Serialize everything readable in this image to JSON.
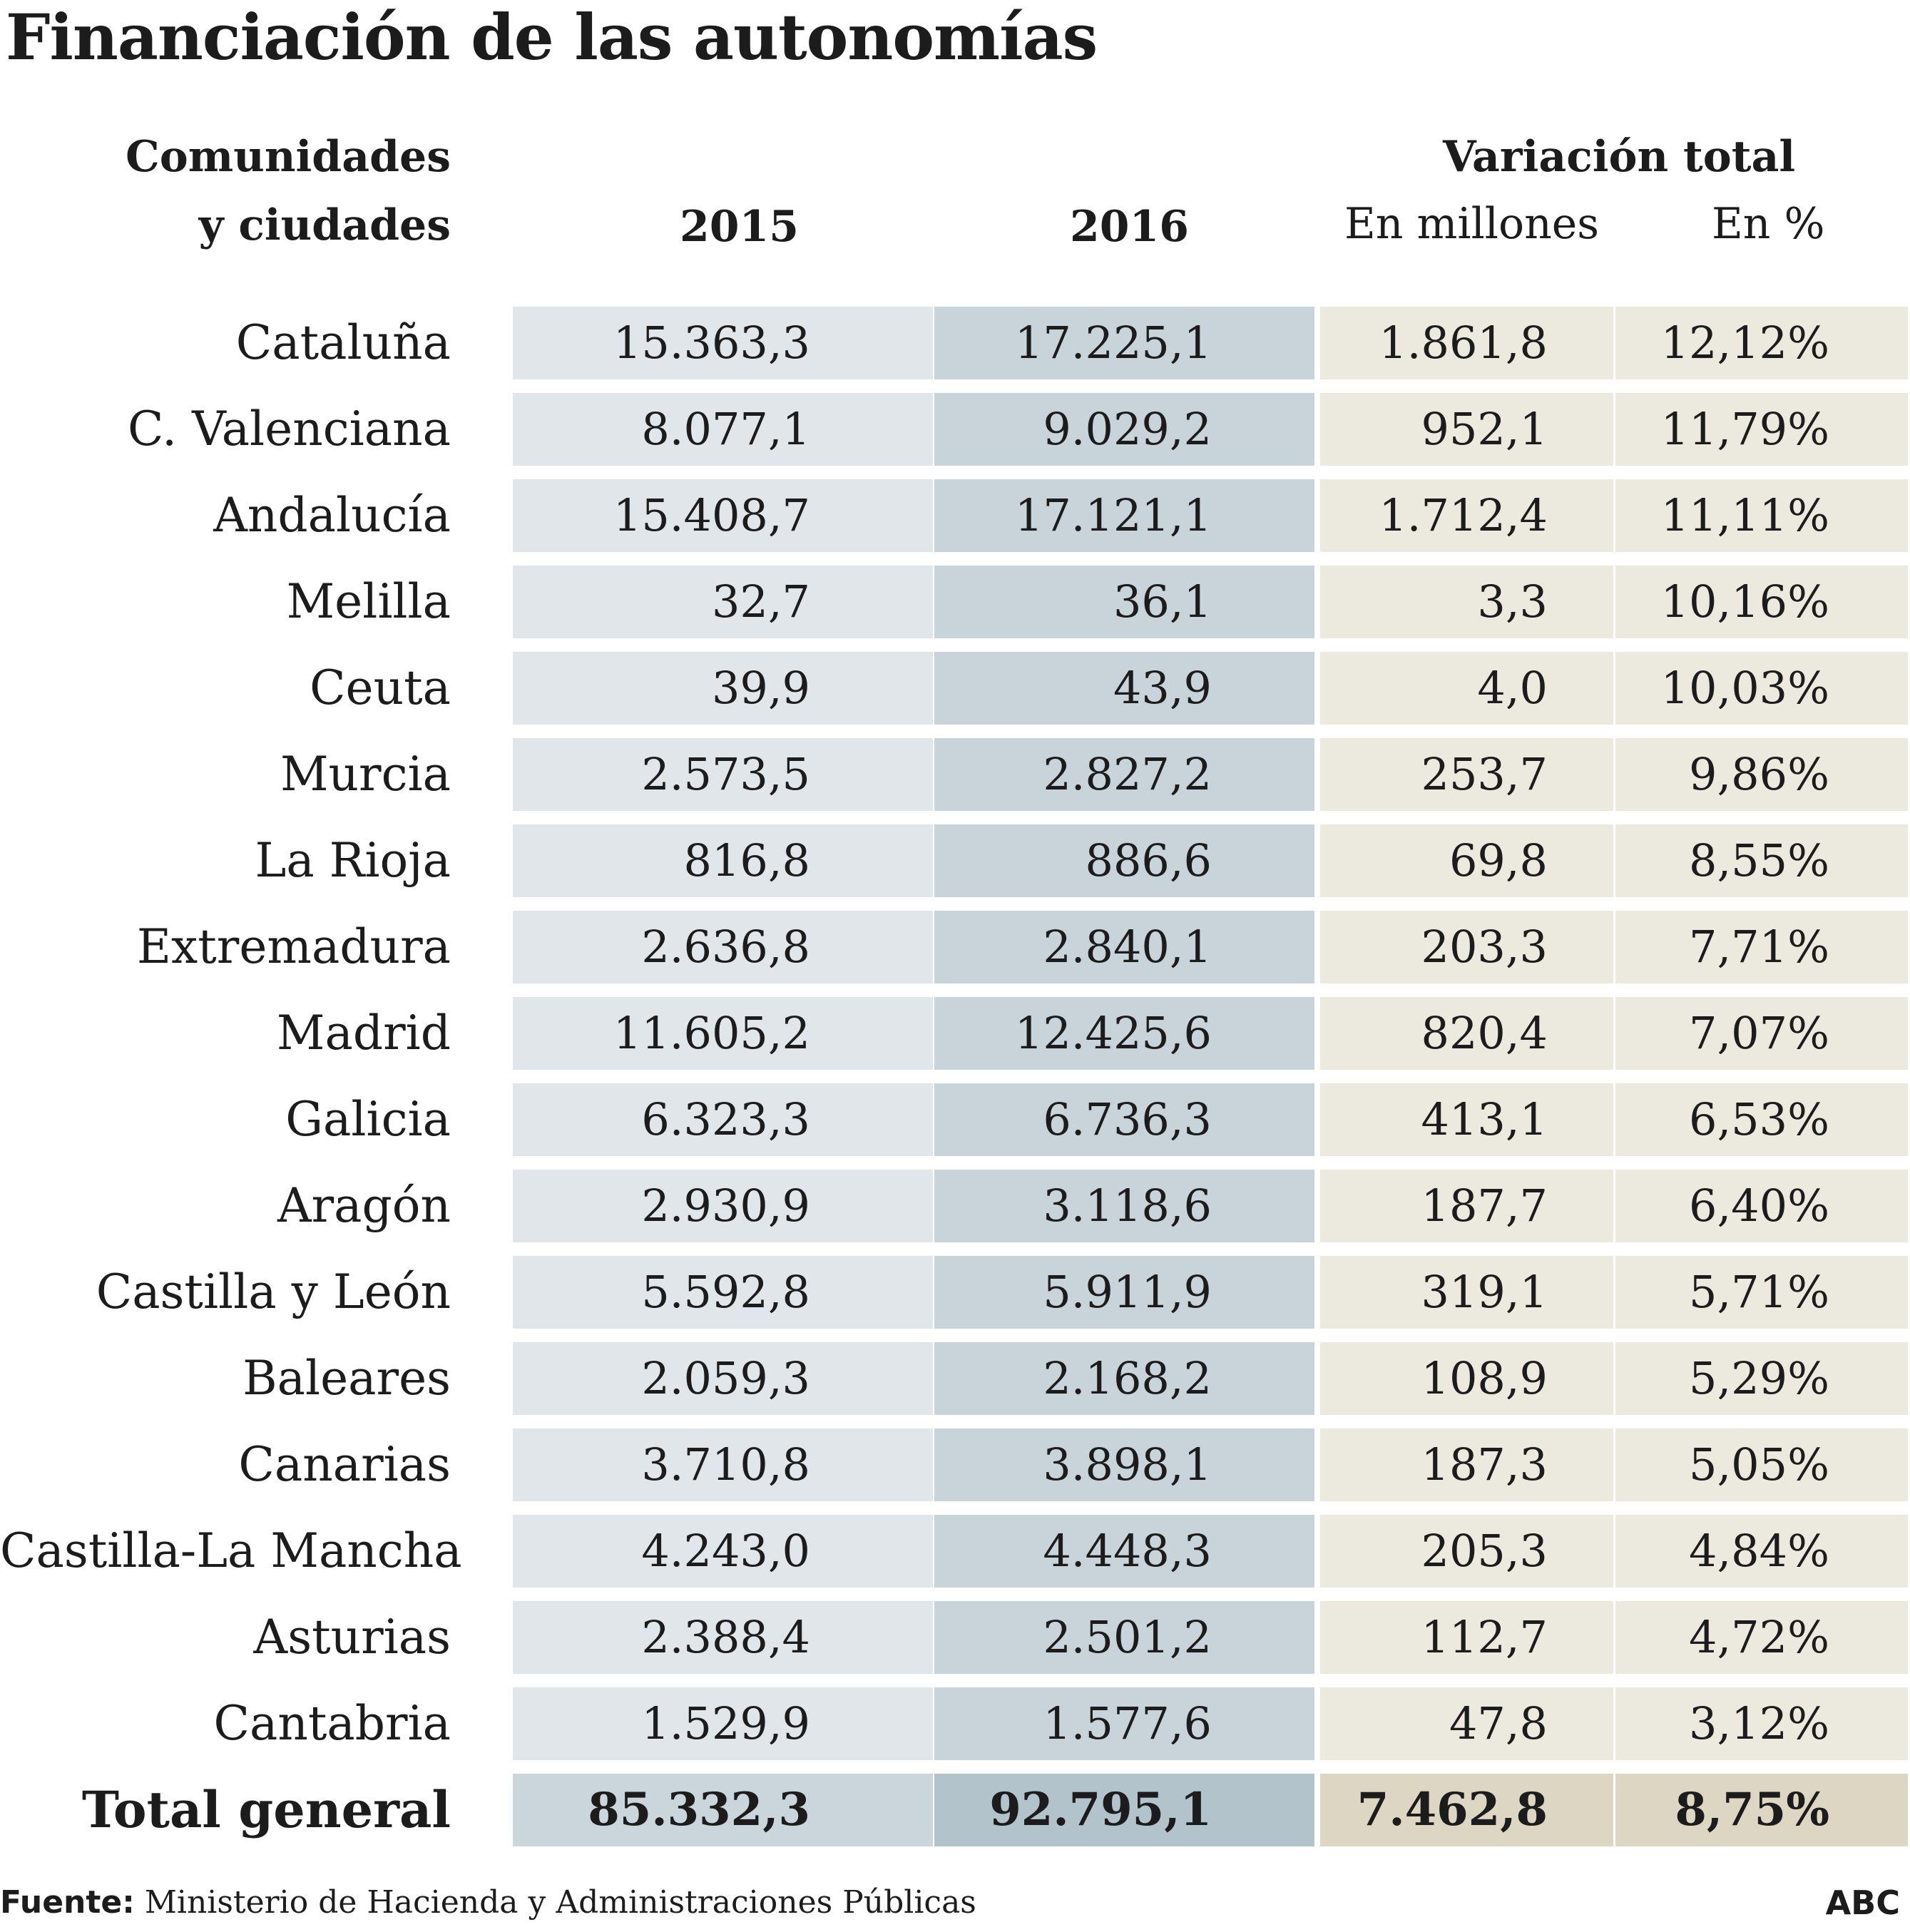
{
  "title": "Financiación de las autonomías",
  "header": {
    "region_line1": "Comunidades",
    "region_line2": "y ciudades",
    "col_2015": "2015",
    "col_2016": "2016",
    "variation_group": "Variación total",
    "col_millions": "En millones",
    "col_percent": "En %"
  },
  "chart_data": {
    "type": "table",
    "title": "Financiación de las autonomías",
    "columns": [
      "Comunidades y ciudades",
      "2015",
      "2016",
      "Variación total En millones",
      "Variación total En %"
    ],
    "rows": [
      {
        "region": "Cataluña",
        "y2015": "15.363,3",
        "y2016": "17.225,1",
        "var_mill": "1.861,8",
        "var_pct": "12,12%"
      },
      {
        "region": "C. Valenciana",
        "y2015": "8.077,1",
        "y2016": "9.029,2",
        "var_mill": "952,1",
        "var_pct": "11,79%"
      },
      {
        "region": "Andalucía",
        "y2015": "15.408,7",
        "y2016": "17.121,1",
        "var_mill": "1.712,4",
        "var_pct": "11,11%"
      },
      {
        "region": "Melilla",
        "y2015": "32,7",
        "y2016": "36,1",
        "var_mill": "3,3",
        "var_pct": "10,16%"
      },
      {
        "region": "Ceuta",
        "y2015": "39,9",
        "y2016": "43,9",
        "var_mill": "4,0",
        "var_pct": "10,03%"
      },
      {
        "region": "Murcia",
        "y2015": "2.573,5",
        "y2016": "2.827,2",
        "var_mill": "253,7",
        "var_pct": "9,86%"
      },
      {
        "region": "La Rioja",
        "y2015": "816,8",
        "y2016": "886,6",
        "var_mill": "69,8",
        "var_pct": "8,55%"
      },
      {
        "region": "Extremadura",
        "y2015": "2.636,8",
        "y2016": "2.840,1",
        "var_mill": "203,3",
        "var_pct": "7,71%"
      },
      {
        "region": "Madrid",
        "y2015": "11.605,2",
        "y2016": "12.425,6",
        "var_mill": "820,4",
        "var_pct": "7,07%"
      },
      {
        "region": "Galicia",
        "y2015": "6.323,3",
        "y2016": "6.736,3",
        "var_mill": "413,1",
        "var_pct": "6,53%"
      },
      {
        "region": "Aragón",
        "y2015": "2.930,9",
        "y2016": "3.118,6",
        "var_mill": "187,7",
        "var_pct": "6,40%"
      },
      {
        "region": "Castilla y León",
        "y2015": "5.592,8",
        "y2016": "5.911,9",
        "var_mill": "319,1",
        "var_pct": "5,71%"
      },
      {
        "region": "Baleares",
        "y2015": "2.059,3",
        "y2016": "2.168,2",
        "var_mill": "108,9",
        "var_pct": "5,29%"
      },
      {
        "region": "Canarias",
        "y2015": "3.710,8",
        "y2016": "3.898,1",
        "var_mill": "187,3",
        "var_pct": "5,05%"
      },
      {
        "region": "Castilla-La Mancha",
        "y2015": "4.243,0",
        "y2016": "4.448,3",
        "var_mill": "205,3",
        "var_pct": "4,84%"
      },
      {
        "region": "Asturias",
        "y2015": "2.388,4",
        "y2016": "2.501,2",
        "var_mill": "112,7",
        "var_pct": "4,72%"
      },
      {
        "region": "Cantabria",
        "y2015": "1.529,9",
        "y2016": "1.577,6",
        "var_mill": "47,8",
        "var_pct": "3,12%"
      }
    ],
    "total": {
      "region": "Total general",
      "y2015": "85.332,3",
      "y2016": "92.795,1",
      "var_mill": "7.462,8",
      "var_pct": "8,75%"
    }
  },
  "footer": {
    "source_label": "Fuente:",
    "source_text": " Ministerio de Hacienda y Administraciones Públicas",
    "brand": "ABC"
  },
  "colors": {
    "col_2015_bg": "#e0e6ea",
    "col_2016_bg": "#c8d4da",
    "variation_bg": "#ece9df",
    "total_2015_bg": "#cbd6dc",
    "total_2016_bg": "#b2c3cb",
    "total_variation_bg": "#dcd6c3"
  }
}
